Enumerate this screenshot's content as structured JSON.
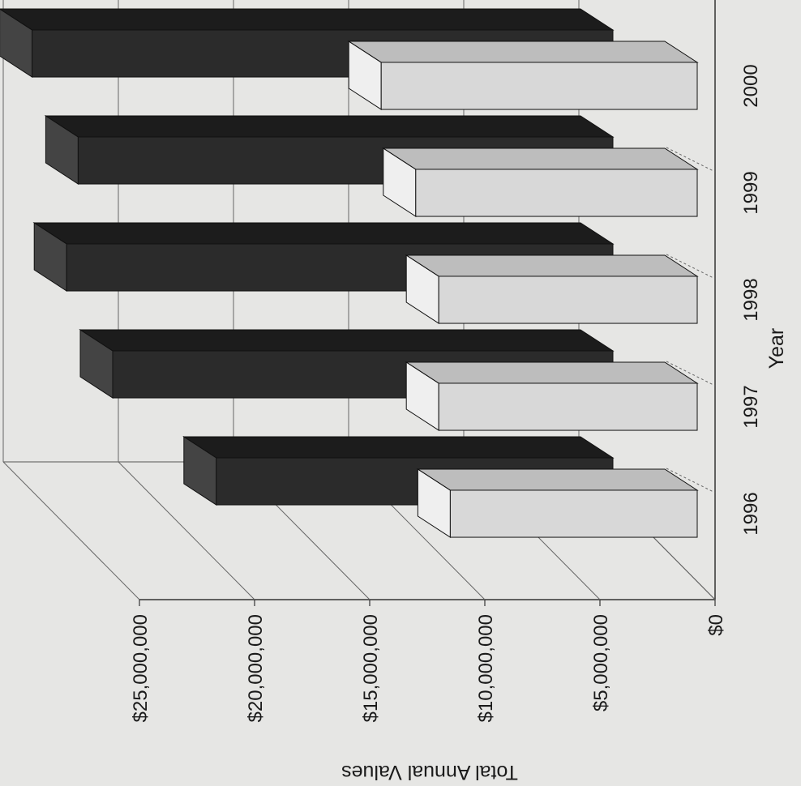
{
  "chart_data": {
    "type": "bar",
    "orientation": "horizontal-3d",
    "categories": [
      "1996",
      "1997",
      "1998",
      "1999",
      "2000"
    ],
    "series": [
      {
        "values": [
          11500000,
          12000000,
          12000000,
          13000000,
          14500000
        ],
        "color": "#d8d8d8"
      },
      {
        "values": [
          18000000,
          22500000,
          24500000,
          24000000,
          26000000
        ],
        "color": "#2b2b2b"
      }
    ],
    "xlabel": "Year",
    "ylabel": "Total Annual Values",
    "ylim": [
      0,
      25000000
    ],
    "y_ticks": [
      0,
      5000000,
      10000000,
      15000000,
      20000000,
      25000000
    ],
    "y_tick_labels": [
      "$0",
      "$5,000,000",
      "$10,000,000",
      "$15,000,000",
      "$20,000,000",
      "$25,000,000"
    ],
    "grid": true,
    "legend": "none"
  }
}
